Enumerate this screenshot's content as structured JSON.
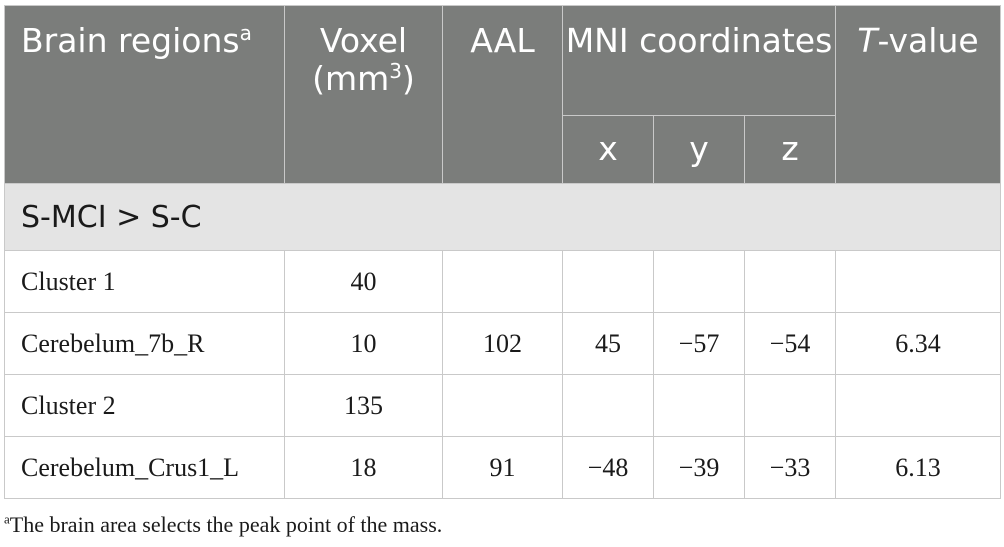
{
  "header": {
    "brain_regions": "Brain regions",
    "brain_regions_note": "a",
    "voxel_line1": "Voxel",
    "voxel_line2": "(mm",
    "voxel_sup": "3",
    "voxel_close": ")",
    "aal": "AAL",
    "mni": "MNI coordinates",
    "x": "x",
    "y": "y",
    "z": "z",
    "t_italic": "T",
    "t_rest": "-value"
  },
  "section_label": "S-MCI > S-C",
  "rows": [
    {
      "region": "Cluster 1",
      "voxel": "40",
      "aal": "",
      "x": "",
      "y": "",
      "z": "",
      "t": ""
    },
    {
      "region": "Cerebelum_7b_R",
      "voxel": "10",
      "aal": "102",
      "x": "45",
      "y": "−57",
      "z": "−54",
      "t": "6.34"
    },
    {
      "region": "Cluster 2",
      "voxel": "135",
      "aal": "",
      "x": "",
      "y": "",
      "z": "",
      "t": ""
    },
    {
      "region": "Cerebelum_Crus1_L",
      "voxel": "18",
      "aal": "91",
      "x": "−48",
      "y": "−39",
      "z": "−33",
      "t": "6.13"
    }
  ],
  "footnote": {
    "marker": "a",
    "text": "The brain area selects the peak point of the mass."
  }
}
